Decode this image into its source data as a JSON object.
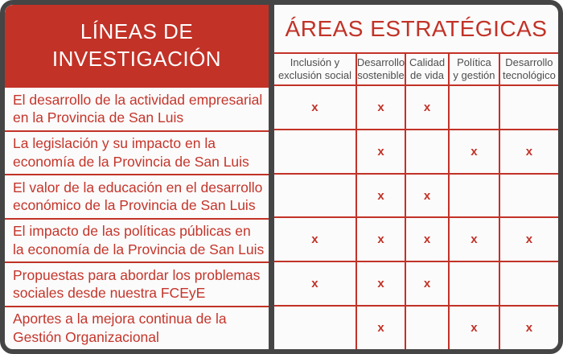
{
  "colors": {
    "red": "#C23227",
    "frame_gray": "#454545",
    "header_text_gray": "#4D4D4D",
    "background": "#FBFBFB",
    "header_title_white": "#FFFFFF"
  },
  "left_panel": {
    "title": "LÍNEAS DE\nINVESTIGACIÓN"
  },
  "right_panel": {
    "title": "ÁREAS ESTRATÉGICAS"
  },
  "columns": [
    "Inclusión y\nexclusión social",
    "Desarrollo\nsostenible",
    "Calidad\nde vida",
    "Política\ny gestión",
    "Desarrollo\ntecnológico"
  ],
  "rows": [
    {
      "label": "El desarrollo de la actividad empresarial\nen la Provincia de San Luis",
      "marks": [
        "x",
        "x",
        "x",
        "",
        ""
      ]
    },
    {
      "label": "La legislación y su impacto en la\neconomía de la Provincia de San Luis",
      "marks": [
        "",
        "x",
        "",
        "x",
        "x"
      ]
    },
    {
      "label": "El valor de la educación en el desarrollo\neconómico de la Provincia de San Luis",
      "marks": [
        "",
        "x",
        "x",
        "",
        ""
      ]
    },
    {
      "label": "El impacto de las políticas públicas en\nla economía de la Provincia de San Luis",
      "marks": [
        "x",
        "x",
        "x",
        "x",
        "x"
      ]
    },
    {
      "label": "Propuestas para abordar los problemas\nsociales desde nuestra FCEyE",
      "marks": [
        "x",
        "x",
        "x",
        "",
        ""
      ]
    },
    {
      "label": "Aportes a la mejora continua de la\nGestión Organizacional",
      "marks": [
        "",
        "x",
        "",
        "x",
        "x"
      ]
    }
  ],
  "chart_data": {
    "type": "table",
    "title": "ÁREAS ESTRATÉGICAS",
    "row_header": "LÍNEAS DE INVESTIGACIÓN",
    "columns": [
      "Inclusión y exclusión social",
      "Desarrollo sostenible",
      "Calidad de vida",
      "Política y gestión",
      "Desarrollo tecnológico"
    ],
    "rows": [
      "El desarrollo de la actividad empresarial en la Provincia de San Luis",
      "La legislación y su impacto en la economía de la Provincia de San Luis",
      "El valor de la educación en el desarrollo económico de la Provincia de San Luis",
      "El impacto de las políticas públicas en la economía de la Provincia de San Luis",
      "Propuestas para abordar los problemas sociales desde nuestra FCEyE",
      "Aportes a la mejora continua de la Gestión Organizacional"
    ],
    "mark": "x",
    "matrix": [
      [
        1,
        1,
        1,
        0,
        0
      ],
      [
        0,
        1,
        0,
        1,
        1
      ],
      [
        0,
        1,
        1,
        0,
        0
      ],
      [
        1,
        1,
        1,
        1,
        1
      ],
      [
        1,
        1,
        1,
        0,
        0
      ],
      [
        0,
        1,
        0,
        1,
        1
      ]
    ]
  }
}
